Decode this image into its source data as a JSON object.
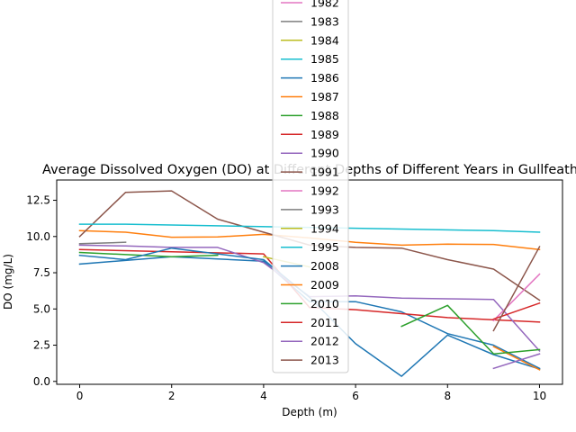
{
  "chart_data": {
    "type": "line",
    "title": "Average Dissolved Oxygen (DO) at Different Depths of Different Years in Gullfeather",
    "xlabel": "Depth (m)",
    "ylabel": "DO (mg/L)",
    "xlim": [
      -0.5,
      10.5
    ],
    "ylim": [
      -0.2,
      13.9
    ],
    "x_ticks": [
      0,
      2,
      4,
      6,
      8,
      10
    ],
    "x_tick_labels": [
      "0",
      "2",
      "4",
      "6",
      "8",
      "10"
    ],
    "y_ticks": [
      0.0,
      2.5,
      5.0,
      7.5,
      10.0,
      12.5
    ],
    "y_tick_labels": [
      "0.0",
      "2.5",
      "5.0",
      "7.5",
      "10.0",
      "12.5"
    ],
    "grid": false,
    "legend_position": "upper-center, overlapping plot and extending above the figure",
    "series": [
      {
        "name": "1982",
        "color": "#e377c2",
        "x": [],
        "y": []
      },
      {
        "name": "1983",
        "color": "#7f7f7f",
        "x": [],
        "y": []
      },
      {
        "name": "1984",
        "color": "#bcbd22",
        "x": [],
        "y": []
      },
      {
        "name": "1985",
        "color": "#17becf",
        "x": [],
        "y": []
      },
      {
        "name": "1986",
        "color": "#1f77b4",
        "x": [
          0,
          2,
          4,
          5,
          6,
          7,
          8,
          9,
          10
        ],
        "y": [
          8.1,
          8.6,
          8.3,
          5.5,
          5.5,
          4.8,
          3.3,
          2.5,
          0.9
        ]
      },
      {
        "name": "1987",
        "color": "#ff7f0e",
        "x": [
          0,
          1,
          2,
          3,
          4,
          5,
          6,
          7,
          8,
          9,
          10
        ],
        "y": [
          10.4,
          10.3,
          9.95,
          9.97,
          10.15,
          9.9,
          9.6,
          9.4,
          9.47,
          9.45,
          9.1
        ]
      },
      {
        "name": "1988",
        "color": "#2ca02c",
        "x": [
          0,
          2,
          3
        ],
        "y": [
          8.9,
          8.6,
          8.7
        ]
      },
      {
        "name": "1989",
        "color": "#d62728",
        "x": [
          0,
          2,
          4,
          5,
          6,
          8,
          10
        ],
        "y": [
          9.1,
          8.95,
          8.8,
          5.1,
          4.95,
          4.4,
          4.1
        ]
      },
      {
        "name": "1990",
        "color": "#9467bd",
        "x": [
          0,
          1,
          2,
          3,
          4,
          5,
          6,
          7,
          8,
          9,
          10
        ],
        "y": [
          9.4,
          9.35,
          9.25,
          9.25,
          8.2,
          5.85,
          5.9,
          5.75,
          5.7,
          5.65,
          2.1
        ]
      },
      {
        "name": "1991",
        "color": "#8c564b",
        "x": [
          0,
          1,
          2,
          3,
          4,
          5,
          6,
          7,
          8,
          9,
          10
        ],
        "y": [
          10.0,
          13.05,
          13.15,
          11.2,
          10.3,
          9.4,
          9.25,
          9.2,
          8.4,
          7.75,
          5.6
        ]
      },
      {
        "name": "1992",
        "color": "#e377c2",
        "x": [
          9,
          10
        ],
        "y": [
          4.2,
          7.4
        ]
      },
      {
        "name": "1993",
        "color": "#7f7f7f",
        "x": [
          0,
          1
        ],
        "y": [
          9.5,
          9.6
        ]
      },
      {
        "name": "1994",
        "color": "#bcbd22",
        "x": [
          4,
          5
        ],
        "y": [
          8.6,
          7.9
        ]
      },
      {
        "name": "1995",
        "color": "#17becf",
        "x": [
          0,
          1,
          9,
          10
        ],
        "y": [
          10.85,
          10.85,
          10.4,
          10.3
        ]
      },
      {
        "name": "2008",
        "color": "#1f77b4",
        "x": [
          0,
          1,
          2,
          4,
          5,
          6,
          7,
          8,
          9,
          10
        ],
        "y": [
          8.7,
          8.4,
          9.2,
          8.4,
          5.8,
          2.6,
          0.35,
          3.2,
          1.85,
          0.85
        ]
      },
      {
        "name": "2009",
        "color": "#ff7f0e",
        "x": [
          9,
          10
        ],
        "y": [
          2.4,
          0.8
        ]
      },
      {
        "name": "2010",
        "color": "#2ca02c",
        "x": [
          7,
          8,
          9,
          10
        ],
        "y": [
          3.8,
          5.25,
          1.9,
          2.2
        ]
      },
      {
        "name": "2011",
        "color": "#d62728",
        "x": [
          9,
          10
        ],
        "y": [
          4.3,
          5.4
        ]
      },
      {
        "name": "2012",
        "color": "#9467bd",
        "x": [
          9,
          10
        ],
        "y": [
          0.9,
          1.9
        ]
      },
      {
        "name": "2013",
        "color": "#8c564b",
        "x": [
          9,
          10
        ],
        "y": [
          3.5,
          9.3
        ]
      }
    ]
  }
}
